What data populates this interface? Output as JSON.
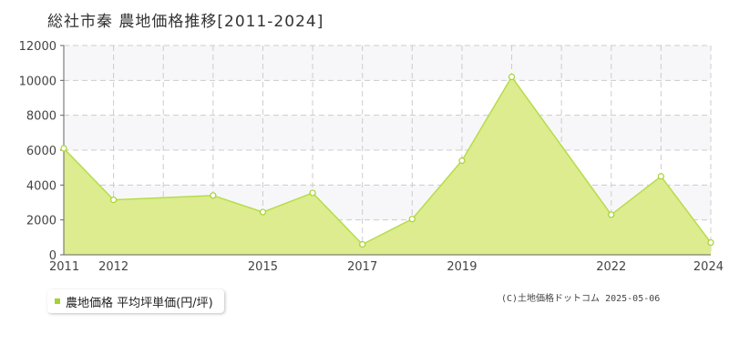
{
  "title": "総社市秦  農地価格推移[2011-2024]",
  "legend_label": "農地価格 平均坪単価(円/坪)",
  "copyright": "(C)土地価格ドットコム 2025-05-06",
  "colors": {
    "fill": "#dcec8f",
    "line": "#b7dc4a",
    "marker": "#a6d22e",
    "band": "#f7f7f9",
    "grid": "#cccccc"
  },
  "chart_data": {
    "type": "area",
    "x": [
      2011,
      2012,
      2014,
      2015,
      2016,
      2017,
      2018,
      2019,
      2020,
      2022,
      2023,
      2024
    ],
    "series": [
      {
        "values": [
          6100,
          3150,
          3400,
          2450,
          3550,
          600,
          2050,
          5400,
          10200,
          2300,
          4500,
          700
        ]
      }
    ],
    "x_tick_labels": [
      "2011",
      "2012",
      "2015",
      "2017",
      "2019",
      "2022",
      "2024"
    ],
    "x_tick_values": [
      2011,
      2012,
      2015,
      2017,
      2019,
      2022,
      2024
    ],
    "y_ticks": [
      0,
      2000,
      4000,
      6000,
      8000,
      10000,
      12000
    ],
    "xlim": [
      2011,
      2024
    ],
    "ylim": [
      0,
      12000
    ],
    "grid": true
  }
}
